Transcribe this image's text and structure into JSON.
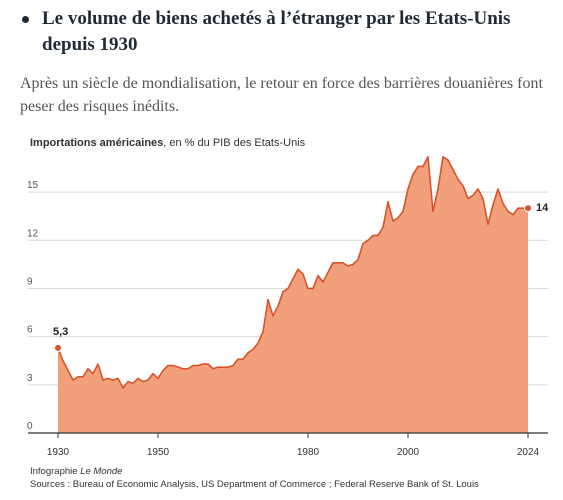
{
  "header": {
    "title": "Le volume de biens achetés à l’étranger par les Etats-Unis depuis 1930",
    "standfirst": "Après un siècle de mondialisation, le retour en force des barrières douanières font peser des risques inédits."
  },
  "chart_subtitle": {
    "strong": "Importations américaines",
    "rest": ", en % du PIB des Etats-Unis"
  },
  "footer": {
    "credit_prefix": "Infographie ",
    "credit_em": "Le Monde",
    "sources": "Sources : Bureau of Economic Analysis, US Department of Commerce ; Federal Reserve Bank of St. Louis"
  },
  "colors": {
    "area_fill": "#f2a07b",
    "line": "#d9532a",
    "grid": "#d9d9d9",
    "axis": "#333333"
  },
  "chart_data": {
    "type": "area",
    "title": "",
    "xlabel": "",
    "ylabel": "Importations américaines, en % du PIB des Etats-Unis",
    "xlim": [
      1930,
      2024
    ],
    "ylim": [
      0,
      17
    ],
    "x_ticks": [
      1930,
      1950,
      1980,
      2000,
      2024
    ],
    "y_ticks": [
      0,
      3,
      6,
      9,
      12,
      15
    ],
    "grid": true,
    "annotations": [
      {
        "x": 1930,
        "y": 5.3,
        "label": "5,3"
      },
      {
        "x": 2024,
        "y": 14,
        "label": "14"
      }
    ],
    "series": [
      {
        "x": [
          1930,
          1931,
          1932,
          1933,
          1934,
          1935,
          1936,
          1937,
          1938,
          1939,
          1940,
          1941,
          1942,
          1943,
          1944,
          1945,
          1946,
          1947,
          1948,
          1949,
          1950,
          1951,
          1952,
          1953,
          1954,
          1955,
          1956,
          1957,
          1958,
          1959,
          1960,
          1961,
          1962,
          1963,
          1964,
          1965,
          1966,
          1967,
          1968,
          1969,
          1970,
          1971,
          1972,
          1973,
          1974,
          1975,
          1976,
          1977,
          1978,
          1979,
          1980,
          1981,
          1982,
          1983,
          1984,
          1985,
          1986,
          1987,
          1988,
          1989,
          1990,
          1991,
          1992,
          1993,
          1994,
          1995,
          1996,
          1997,
          1998,
          1999,
          2000,
          2001,
          2002,
          2003,
          2004,
          2005,
          2006,
          2007,
          2008,
          2009,
          2010,
          2011,
          2012,
          2013,
          2014,
          2015,
          2016,
          2017,
          2018,
          2019,
          2020,
          2021,
          2022,
          2023,
          2024
        ],
        "values": [
          5.3,
          4.5,
          3.9,
          3.3,
          3.5,
          3.5,
          4.0,
          3.7,
          4.3,
          3.3,
          3.4,
          3.3,
          3.4,
          2.8,
          3.2,
          3.1,
          3.4,
          3.2,
          3.3,
          3.7,
          3.4,
          3.9,
          4.2,
          4.2,
          4.1,
          4.0,
          4.0,
          4.2,
          4.2,
          4.3,
          4.3,
          4.0,
          4.1,
          4.1,
          4.1,
          4.2,
          4.6,
          4.6,
          5.0,
          5.2,
          5.6,
          6.3,
          8.3,
          7.3,
          7.9,
          8.8,
          9.0,
          9.6,
          10.2,
          9.9,
          9.0,
          9.0,
          9.8,
          9.4,
          10.0,
          10.6,
          10.6,
          10.6,
          10.4,
          10.5,
          10.8,
          11.8,
          12.0,
          12.3,
          12.3,
          12.8,
          14.4,
          13.2,
          13.4,
          13.8,
          15.2,
          16.1,
          16.6,
          16.6,
          17.2,
          13.8,
          15.2,
          17.2,
          17.0,
          16.4,
          15.8,
          15.4,
          14.6,
          14.8,
          15.2,
          14.6,
          13.0,
          14.2,
          15.2,
          14.3,
          13.8,
          13.6,
          14.0,
          14.0,
          14.0
        ]
      }
    ]
  }
}
